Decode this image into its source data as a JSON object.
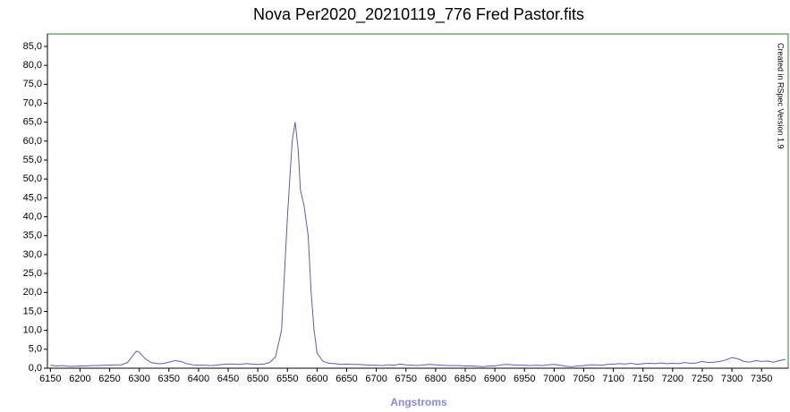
{
  "chart_data": {
    "type": "line",
    "title": "Nova Per2020_20210119_776 Fred Pastor.fits",
    "x_label": "Angstroms",
    "annotation": "Created in RSpec Version 1.9",
    "color": "#5a5eb8",
    "frame_color": "#2e7d32",
    "xlim": [
      6145,
      7395
    ],
    "ylim": [
      0,
      88.3
    ],
    "xticks": [
      6150,
      6200,
      6250,
      6300,
      6350,
      6400,
      6450,
      6500,
      6550,
      6600,
      6650,
      6700,
      6750,
      6800,
      6850,
      6900,
      6950,
      7000,
      7050,
      7100,
      7150,
      7200,
      7250,
      7300,
      7350
    ],
    "yticks": [
      {
        "value": 0,
        "label": "0,0"
      },
      {
        "value": 5,
        "label": "5,0"
      },
      {
        "value": 10,
        "label": "10,0"
      },
      {
        "value": 15,
        "label": "15,0"
      },
      {
        "value": 20,
        "label": "20,0"
      },
      {
        "value": 25,
        "label": "25,0"
      },
      {
        "value": 30,
        "label": "30,0"
      },
      {
        "value": 35,
        "label": "35,0"
      },
      {
        "value": 40,
        "label": "40,0"
      },
      {
        "value": 45,
        "label": "45,0"
      },
      {
        "value": 50,
        "label": "50,0"
      },
      {
        "value": 55,
        "label": "55,0"
      },
      {
        "value": 60,
        "label": "60,0"
      },
      {
        "value": 65,
        "label": "65,0"
      },
      {
        "value": 70,
        "label": "70,0"
      },
      {
        "value": 75,
        "label": "75,0"
      },
      {
        "value": 80,
        "label": "80,0"
      },
      {
        "value": 85,
        "label": "85,0"
      }
    ],
    "x": [
      6150,
      6160,
      6170,
      6180,
      6190,
      6200,
      6210,
      6220,
      6230,
      6240,
      6250,
      6260,
      6270,
      6280,
      6290,
      6295,
      6300,
      6310,
      6320,
      6330,
      6340,
      6350,
      6360,
      6370,
      6380,
      6390,
      6400,
      6410,
      6420,
      6430,
      6440,
      6450,
      6460,
      6470,
      6480,
      6490,
      6500,
      6510,
      6520,
      6530,
      6540,
      6550,
      6558,
      6563,
      6568,
      6572,
      6578,
      6585,
      6590,
      6595,
      6600,
      6610,
      6620,
      6630,
      6640,
      6650,
      6660,
      6670,
      6680,
      6690,
      6700,
      6710,
      6720,
      6730,
      6740,
      6750,
      6760,
      6770,
      6780,
      6790,
      6800,
      6810,
      6820,
      6830,
      6840,
      6850,
      6860,
      6870,
      6880,
      6890,
      6900,
      6910,
      6920,
      6930,
      6940,
      6950,
      6960,
      6970,
      6980,
      6990,
      7000,
      7010,
      7020,
      7030,
      7040,
      7050,
      7060,
      7070,
      7080,
      7090,
      7100,
      7110,
      7120,
      7130,
      7140,
      7150,
      7160,
      7170,
      7180,
      7190,
      7200,
      7210,
      7220,
      7230,
      7240,
      7250,
      7260,
      7270,
      7280,
      7290,
      7300,
      7310,
      7320,
      7330,
      7340,
      7350,
      7360,
      7370,
      7380,
      7390
    ],
    "values": [
      0.8,
      0.6,
      0.7,
      0.5,
      0.5,
      0.6,
      0.6,
      0.7,
      0.7,
      0.8,
      0.8,
      0.9,
      0.9,
      1.5,
      3.5,
      4.5,
      4.2,
      2.5,
      1.5,
      1.2,
      1.2,
      1.6,
      2.0,
      1.8,
      1.2,
      0.9,
      0.8,
      0.8,
      0.7,
      0.8,
      1.0,
      1.1,
      1.1,
      1.0,
      1.2,
      1.1,
      1.0,
      1.1,
      1.5,
      3,
      10,
      40,
      60,
      65,
      58,
      47,
      43,
      35,
      20,
      10,
      4,
      1.8,
      1.3,
      1.2,
      1.0,
      1.1,
      1.0,
      1.0,
      0.9,
      0.8,
      0.8,
      0.7,
      0.9,
      0.8,
      1.1,
      0.9,
      0.8,
      0.7,
      0.9,
      1.0,
      0.9,
      0.8,
      0.7,
      0.7,
      0.7,
      0.6,
      0.6,
      0.5,
      0.4,
      0.6,
      0.6,
      0.9,
      1.0,
      0.9,
      0.8,
      0.8,
      0.7,
      0.8,
      0.7,
      0.9,
      1.0,
      0.8,
      0.5,
      0.4,
      0.6,
      0.7,
      0.9,
      0.9,
      0.8,
      1.0,
      1.1,
      1.2,
      1.1,
      1.3,
      1.0,
      1.2,
      1.3,
      1.2,
      1.4,
      1.2,
      1.3,
      1.2,
      1.5,
      1.3,
      1.4,
      1.8,
      1.5,
      1.6,
      1.8,
      2.2,
      2.8,
      2.5,
      1.8,
      1.6,
      2.0,
      1.8,
      1.9,
      1.6,
      2.0,
      2.3
    ]
  }
}
